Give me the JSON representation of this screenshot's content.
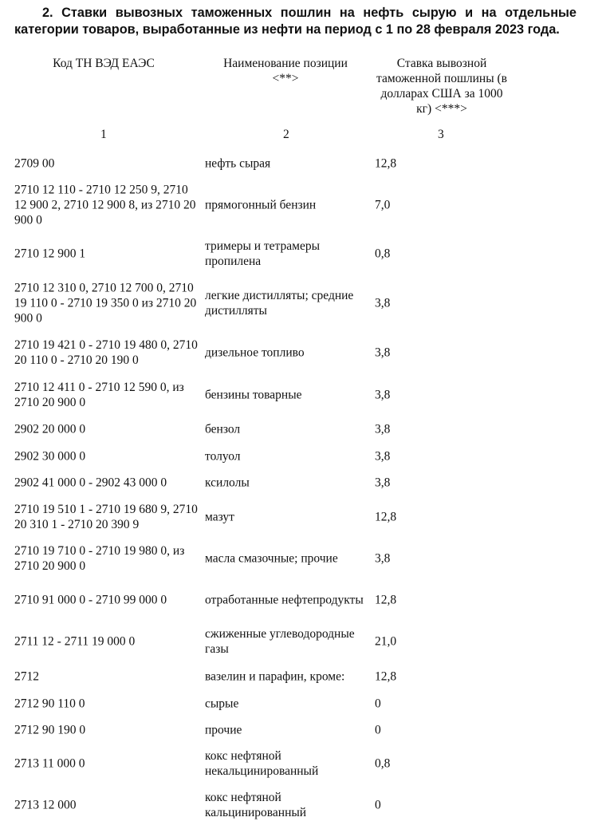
{
  "title": "2. Ставки вывозных таможенных пошлин на нефть сырую и на отдельные категории товаров, выработанные из нефти на период с 1 по 28 февраля 2023 года.",
  "table": {
    "headers": [
      "Код ТН ВЭД ЕАЭС",
      "Наименование позиции <**>",
      "Ставка вывозной таможенной пошлины (в долларах США за 1000 кг) <***>"
    ],
    "column_numbers": [
      "1",
      "2",
      "3"
    ],
    "rows": [
      {
        "code": "2709 00",
        "name": "нефть сырая",
        "rate": "12,8"
      },
      {
        "code": "2710 12 110 - 2710 12 250 9, 2710 12 900 2, 2710 12 900 8, из 2710 20 900 0",
        "name": "прямогонный бензин",
        "rate": "7,0"
      },
      {
        "code": "2710 12 900 1",
        "name": "тримеры и тетрамеры пропилена",
        "rate": "0,8"
      },
      {
        "code": "2710 12 310 0, 2710 12 700 0, 2710 19 110 0 - 2710 19 350 0 из 2710 20 900 0",
        "name": "легкие дистилляты; средние дистилляты",
        "rate": "3,8"
      },
      {
        "code": "2710 19 421 0 - 2710 19 480 0, 2710 20 110 0 - 2710 20 190 0",
        "name": "дизельное топливо",
        "rate": "3,8"
      },
      {
        "code": "2710 12 411 0 - 2710 12 590 0, из 2710 20 900 0",
        "name": "бензины товарные",
        "rate": "3,8"
      },
      {
        "code": "2902 20 000 0",
        "name": "бензол",
        "rate": "3,8"
      },
      {
        "code": "2902 30 000 0",
        "name": "толуол",
        "rate": "3,8"
      },
      {
        "code": "2902 41 000 0 - 2902 43 000 0",
        "name": "ксилолы",
        "rate": "3,8"
      },
      {
        "code": "2710 19 510 1 - 2710 19 680 9, 2710 20 310 1 - 2710 20 390 9",
        "name": "мазут",
        "rate": "12,8"
      },
      {
        "code": "2710 19 710 0 - 2710 19 980 0, из 2710 20 900 0",
        "name": "масла смазочные; прочие",
        "rate": "3,8"
      },
      {
        "code": "2710 91 000 0 - 2710 99 000 0",
        "name": "отработанные нефтепродукты",
        "rate": "12,8"
      },
      {
        "code": "2711 12 - 2711 19 000 0",
        "name": "сжиженные углеводородные газы",
        "rate": "21,0"
      },
      {
        "code": "2712",
        "name": "вазелин и парафин, кроме:",
        "rate": "12,8"
      },
      {
        "code": "2712 90 110 0",
        "name": "сырые",
        "rate": "0"
      },
      {
        "code": "2712 90 190 0",
        "name": "прочие",
        "rate": "0"
      },
      {
        "code": "2713 11 000 0",
        "name": "кокс нефтяной некальцинированный",
        "rate": "0,8"
      },
      {
        "code": "2713 12 000",
        "name": "кокс нефтяной кальцинированный",
        "rate": "0"
      }
    ]
  }
}
